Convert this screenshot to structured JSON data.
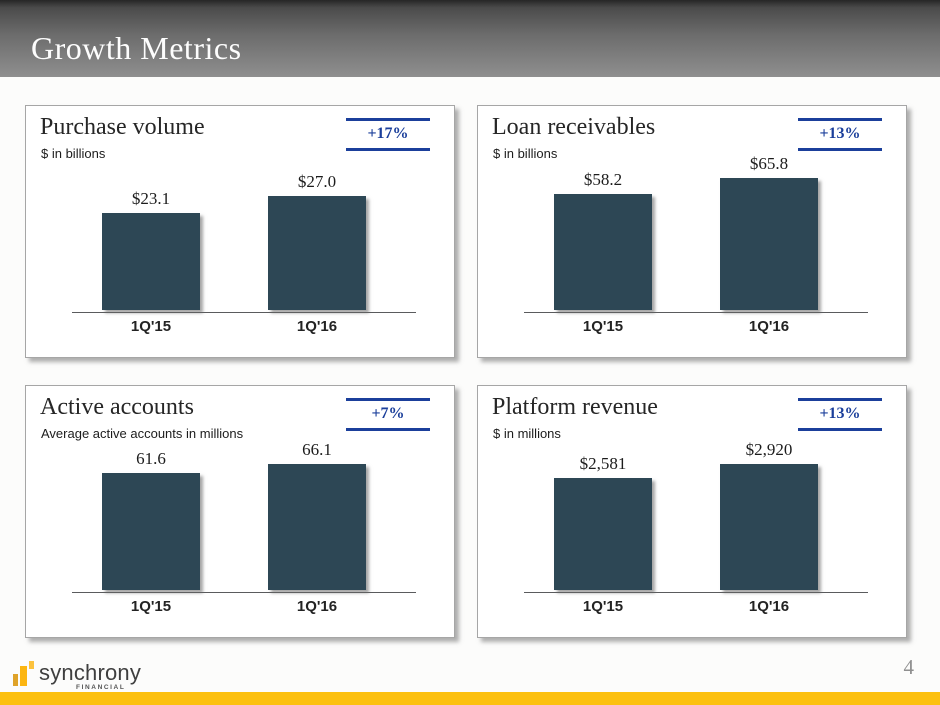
{
  "slide": {
    "title": "Growth Metrics",
    "page_number": "4",
    "footer_logo": {
      "brand": "synchrony",
      "sub": "FINANCIAL"
    }
  },
  "colors": {
    "bar_fill": "#2d4755",
    "accent_blue": "#1b3f9b",
    "brand_gold": "#fcc00f",
    "header_gray_top": "#262626",
    "header_gray_bottom": "#8f8f8f"
  },
  "chart_data": [
    {
      "type": "bar",
      "title": "Purchase volume",
      "subtitle": "$ in billions",
      "change": "+17%",
      "categories": [
        "1Q'15",
        "1Q'16"
      ],
      "values": [
        23.1,
        27.0
      ],
      "labels": [
        "$23.1",
        "$27.0"
      ],
      "ylim": [
        0,
        38
      ],
      "grid": false,
      "legend": "none"
    },
    {
      "type": "bar",
      "title": "Loan receivables",
      "subtitle": "$ in billions",
      "change": "+13%",
      "categories": [
        "1Q'15",
        "1Q'16"
      ],
      "values": [
        58.2,
        65.8
      ],
      "labels": [
        "$58.2",
        "$65.8"
      ],
      "ylim": [
        0,
        80
      ],
      "grid": false,
      "legend": "none"
    },
    {
      "type": "bar",
      "title": "Active accounts",
      "subtitle": "Average active accounts in millions",
      "change": "+7%",
      "categories": [
        "1Q'15",
        "1Q'16"
      ],
      "values": [
        61.6,
        66.1
      ],
      "labels": [
        "61.6",
        "66.1"
      ],
      "ylim": [
        0,
        84
      ],
      "grid": false,
      "legend": "none"
    },
    {
      "type": "bar",
      "title": "Platform revenue",
      "subtitle": "$ in millions",
      "change": "+13%",
      "categories": [
        "1Q'15",
        "1Q'16"
      ],
      "values": [
        2581,
        2920
      ],
      "labels": [
        "$2,581",
        "$2,920"
      ],
      "ylim": [
        0,
        3700
      ],
      "grid": false,
      "legend": "none"
    }
  ]
}
